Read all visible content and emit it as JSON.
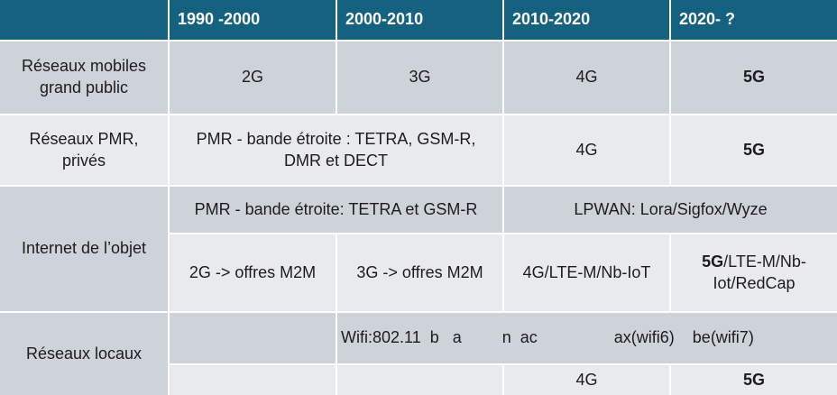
{
  "table": {
    "header": {
      "corner": "",
      "columns": [
        "1990 -2000",
        "2000-2010",
        "2010-2020",
        "2020- ?"
      ]
    },
    "rows": {
      "mobile": {
        "label": "Réseaux mobiles\ngrand public",
        "cell_1990": "2G",
        "cell_2000": "3G",
        "cell_2010": "4G",
        "cell_2020": "5G"
      },
      "pmr": {
        "label": "Réseaux PMR,\nprivés",
        "merged_1990_2010": "PMR - bande étroite : TETRA, GSM-R,\nDMR et DECT",
        "cell_2010": "4G",
        "cell_2020": "5G"
      },
      "iot": {
        "label": "Internet de l’objet",
        "sub_top": {
          "merged_1990_2010": "PMR - bande étroite: TETRA et GSM-R",
          "merged_2010_2020": "LPWAN: Lora/Sigfox/Wyze"
        },
        "sub_bottom": {
          "cell_1990": "2G -> offres M2M",
          "cell_2000": "3G -> offres M2M",
          "cell_2010": "4G/LTE-M/Nb-IoT",
          "cell_2020_bold": "5G",
          "cell_2020_rest": "/LTE-M/Nb-\nIot/RedCap"
        }
      },
      "local": {
        "label": "Réseaux locaux",
        "cell_1990": "",
        "wifi_line": "Wifi:802.11  b   a         n  ac                 ax(wifi6)    be(wifi7)",
        "empty_1990": "",
        "empty_2000": "",
        "cell_2010": "4G",
        "cell_2020": "5G"
      }
    },
    "colors": {
      "header_bg": "#156180",
      "row_medium": "#CED2D9",
      "row_light": "#E9EAED",
      "header_text": "#FFFFFF",
      "body_text": "#1C1C1C"
    }
  }
}
